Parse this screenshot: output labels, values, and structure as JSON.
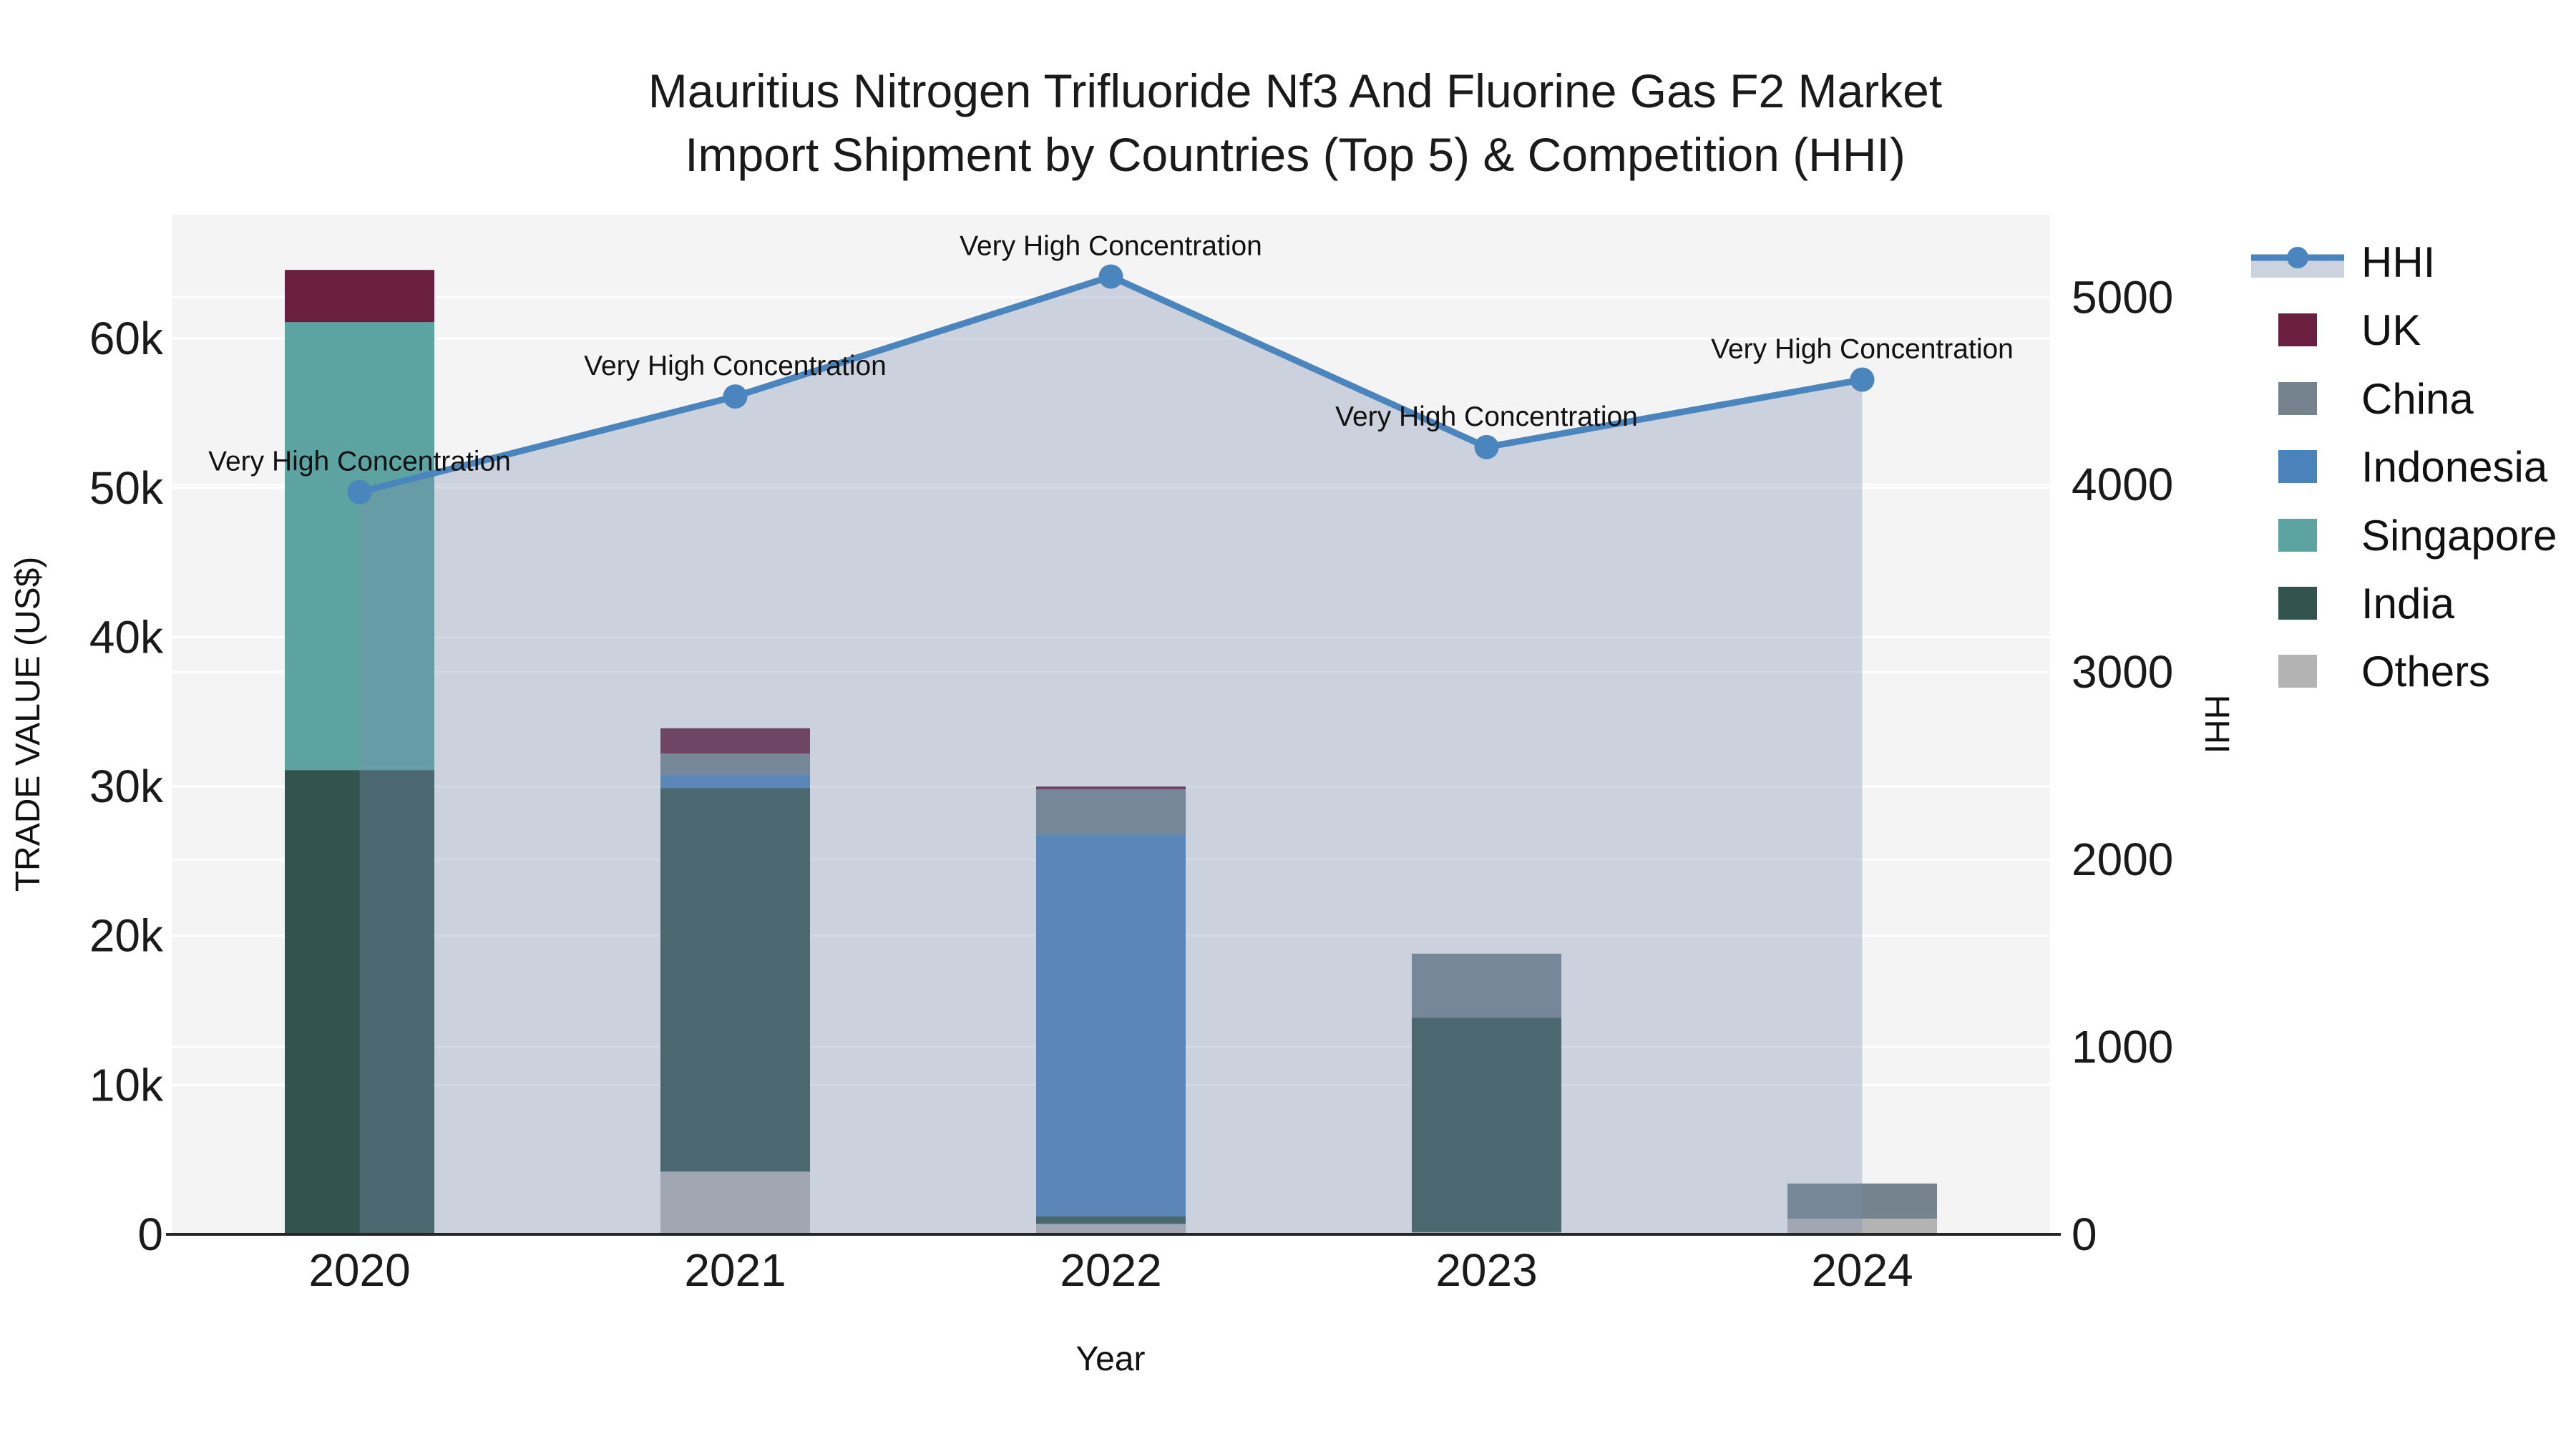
{
  "title": {
    "line1": "Mauritius Nitrogen Trifluoride Nf3 And Fluorine Gas F2 Market",
    "line2": "Import Shipment by Countries (Top 5) & Competition (HHI)"
  },
  "axes": {
    "x_label": "Year",
    "y_left_label": "TRADE VALUE (US$)",
    "y_right_label": "HHI"
  },
  "legend": {
    "items": [
      {
        "label": "HHI",
        "type": "line",
        "color": "#4b85bd",
        "band_color": "#ccd3de"
      },
      {
        "label": "UK",
        "type": "swatch",
        "color": "#6a1f40"
      },
      {
        "label": "China",
        "type": "swatch",
        "color": "#75838f"
      },
      {
        "label": "Indonesia",
        "type": "swatch",
        "color": "#4a83bb"
      },
      {
        "label": "Singapore",
        "type": "swatch",
        "color": "#5da3a2"
      },
      {
        "label": "India",
        "type": "swatch",
        "color": "#32534e"
      },
      {
        "label": "Others",
        "type": "swatch",
        "color": "#b3b3b3"
      }
    ]
  },
  "colors": {
    "figure_bg": "#ffffff",
    "plot_bg": "#f4f4f5",
    "gridline": "#ffffff",
    "axis_line": "#262626",
    "tick_text": "#1a1a1a",
    "annotation_text": "#111111",
    "hhi_line": "#4b85bd",
    "hhi_fill": "rgba(124,145,177,0.34)"
  },
  "chart_data": {
    "type": "bar+line",
    "title": "Mauritius Nitrogen Trifluoride Nf3 And Fluorine Gas F2 Market Import Shipment by Countries (Top 5) & Competition (HHI)",
    "categories": [
      "2020",
      "2021",
      "2022",
      "2023",
      "2024"
    ],
    "xlabel": "Year",
    "ylabel_left": "TRADE VALUE (US$)",
    "ylabel_right": "HHI",
    "y_left": {
      "tick_values": [
        0,
        10000,
        20000,
        30000,
        40000,
        50000,
        60000
      ],
      "tick_labels": [
        "0",
        "10k",
        "20k",
        "30k",
        "40k",
        "50k",
        "60k"
      ],
      "axis_max": 68300
    },
    "y_right": {
      "tick_values": [
        0,
        1000,
        2000,
        3000,
        4000,
        5000
      ],
      "tick_labels": [
        "0",
        "1000",
        "2000",
        "3000",
        "4000",
        "5000"
      ],
      "axis_max": 5440
    },
    "grid": true,
    "legend_position": "right-outside",
    "stack_order_bottom_to_top": [
      "Others",
      "India",
      "Singapore",
      "Indonesia",
      "China",
      "UK"
    ],
    "series": [
      {
        "name": "Others",
        "color": "#b3b3b3",
        "values": [
          0,
          4200,
          700,
          150,
          1050
        ]
      },
      {
        "name": "India",
        "color": "#32534e",
        "values": [
          31100,
          25700,
          500,
          14350,
          0
        ]
      },
      {
        "name": "Singapore",
        "color": "#5da3a2",
        "values": [
          30000,
          0,
          0,
          0,
          0
        ]
      },
      {
        "name": "Indonesia",
        "color": "#4a83bb",
        "values": [
          0,
          900,
          25600,
          0,
          0
        ]
      },
      {
        "name": "China",
        "color": "#75838f",
        "values": [
          0,
          1400,
          3000,
          4300,
          2350
        ]
      },
      {
        "name": "UK",
        "color": "#6a1f40",
        "values": [
          3500,
          1700,
          200,
          0,
          0
        ]
      }
    ],
    "bar_totals": [
      64600,
      33900,
      30000,
      18800,
      3400
    ],
    "line_series": {
      "name": "HHI",
      "color": "#4b85bd",
      "fill": "rgba(124,145,177,0.34)",
      "values": [
        3960,
        4470,
        5110,
        4200,
        4560
      ]
    },
    "annotations": [
      "Very High Concentration",
      "Very High Concentration",
      "Very High Concentration",
      "Very High Concentration",
      "Very High Concentration"
    ]
  }
}
